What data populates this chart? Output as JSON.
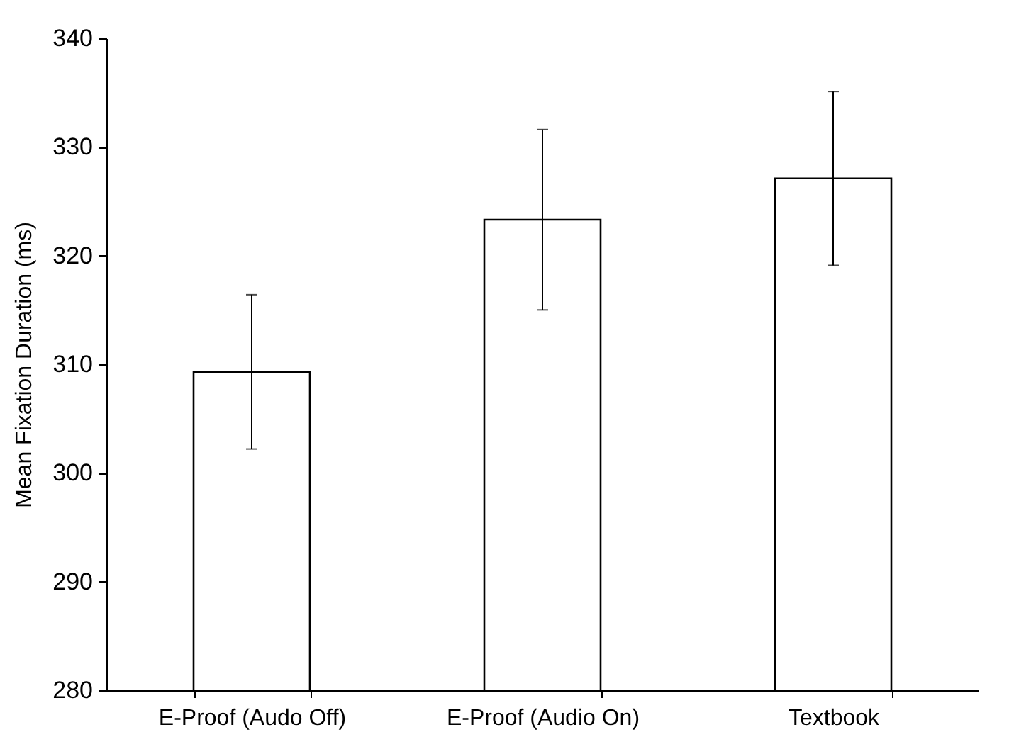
{
  "chart_data": {
    "type": "bar",
    "ylabel": "Mean Fixation Duration (ms)",
    "categories": [
      "E-Proof (Audo Off)",
      "E-Proof (Audio On)",
      "Textbook"
    ],
    "values": [
      309.3,
      323.3,
      327.1
    ],
    "errors": [
      7.1,
      8.3,
      8.0
    ],
    "color": "#ffffff",
    "ylim": [
      280,
      340
    ],
    "yticks": [
      280,
      290,
      300,
      310,
      320,
      330,
      340
    ],
    "grid": false
  }
}
